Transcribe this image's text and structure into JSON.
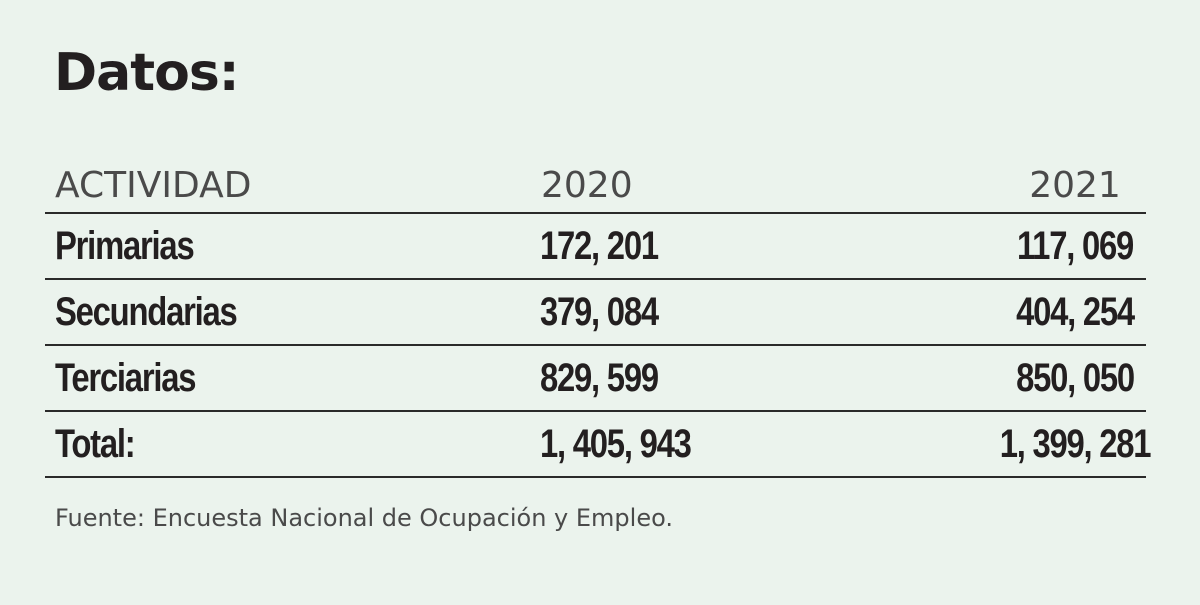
{
  "title": "Datos:",
  "table": {
    "headers": [
      "ACTIVIDAD",
      "2020",
      "2021"
    ],
    "rows": [
      [
        "Primarias",
        "172, 201",
        "117, 069"
      ],
      [
        "Secundarias",
        "379, 084",
        "404, 254"
      ],
      [
        "Terciarias",
        "829, 599",
        "850, 050"
      ],
      [
        "Total:",
        "1, 405, 943",
        "1, 399, 281"
      ]
    ]
  },
  "source": "Fuente: Encuesta Nacional de Ocupación y Empleo.",
  "colors": {
    "background": "#ebf3ed",
    "text": "#231f20",
    "muted_text": "#4a4a4a",
    "rule": "#2a2a2a"
  }
}
